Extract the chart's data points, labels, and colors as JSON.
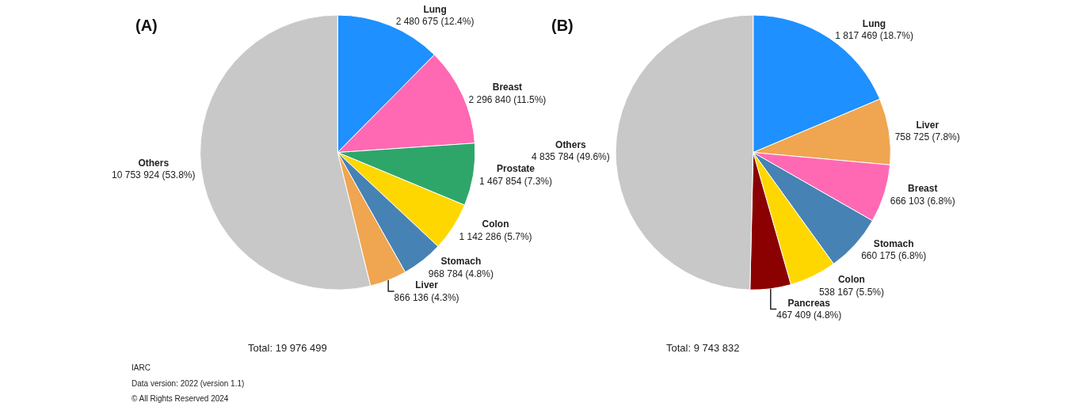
{
  "chart_data": [
    {
      "type": "pie",
      "title": "(A)",
      "categories": [
        "Lung",
        "Breast",
        "Prostate",
        "Colon",
        "Stomach",
        "Liver",
        "Others"
      ],
      "values": [
        2480675,
        2296840,
        1467854,
        1142286,
        968784,
        866136,
        10753924
      ],
      "value_labels": [
        "2 480 675 (12.4%)",
        "2 296 840 (11.5%)",
        "1 467 854 (7.3%)",
        "1 142 286 (5.7%)",
        "968 784 (4.8%)",
        "866 136 (4.3%)",
        "10 753 924 (53.8%)"
      ],
      "colors": [
        "#1e90ff",
        "#ff69b4",
        "#2ea66a",
        "#ffd700",
        "#4682b4",
        "#f0a550",
        "#c8c8c8"
      ],
      "legend": false,
      "annotations": [
        "Total: 19 976 499",
        "IARC",
        "Data version: 2022 (version 1.1)",
        "© All Rights Reserved 2024"
      ]
    },
    {
      "type": "pie",
      "title": "(B)",
      "categories": [
        "Lung",
        "Liver",
        "Breast",
        "Stomach",
        "Colon",
        "Pancreas",
        "Others"
      ],
      "values": [
        1817469,
        758725,
        666103,
        660175,
        538167,
        467409,
        4835784
      ],
      "value_labels": [
        "1 817 469 (18.7%)",
        "758 725 (7.8%)",
        "666 103 (6.8%)",
        "660 175 (6.8%)",
        "538 167 (5.5%)",
        "467 409 (4.8%)",
        "4 835 784 (49.6%)"
      ],
      "colors": [
        "#1e90ff",
        "#f0a550",
        "#ff69b4",
        "#4682b4",
        "#ffd700",
        "#8b0000",
        "#c8c8c8"
      ],
      "legend": false,
      "annotations": [
        "Total: 9 743 832"
      ]
    }
  ]
}
